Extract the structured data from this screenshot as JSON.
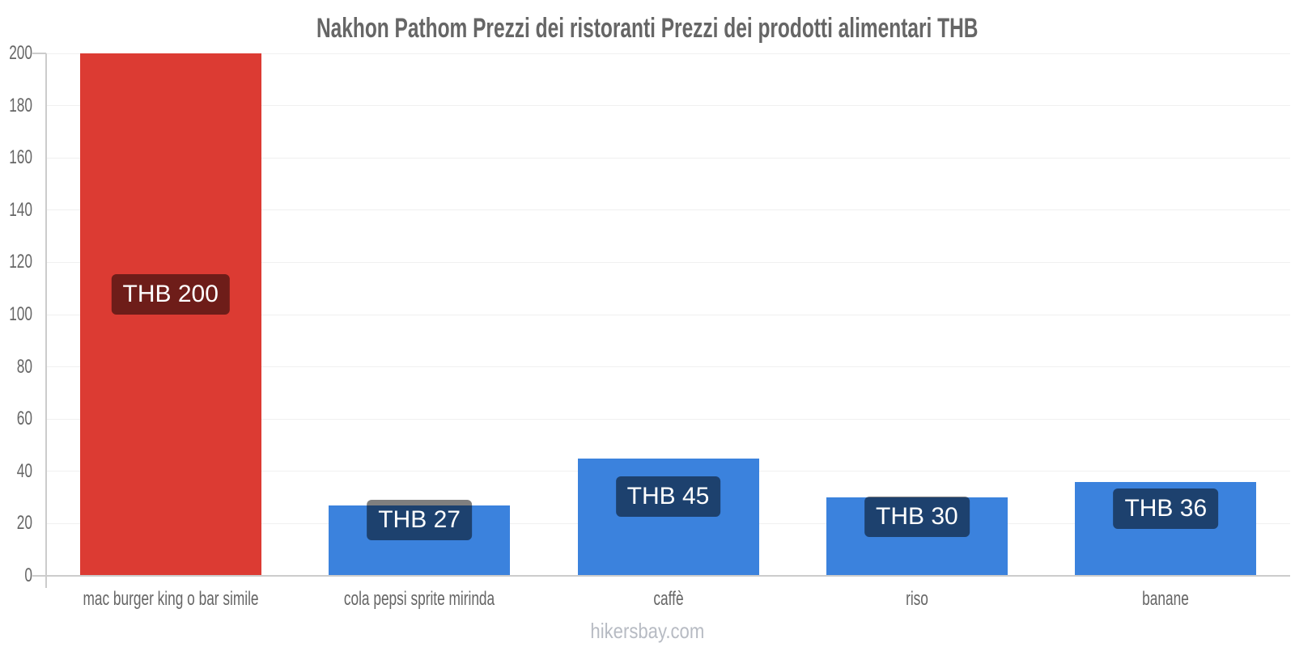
{
  "page": {
    "footer": "hikersbay.com"
  },
  "chart_data": {
    "type": "bar",
    "title": "Nakhon Pathom Prezzi dei ristoranti Prezzi dei prodotti alimentari THB",
    "categories": [
      "mac burger king o bar simile",
      "cola pepsi sprite mirinda",
      "caffè",
      "riso",
      "banane"
    ],
    "values": [
      200,
      27,
      45,
      30,
      36
    ],
    "value_label_prefix": "THB",
    "value_labels": [
      "THB 200",
      "THB 27",
      "THB 45",
      "THB 30",
      "THB 36"
    ],
    "currency": "THB",
    "ylim": [
      0,
      200
    ],
    "ytick_step": 20,
    "yticks": [
      0,
      20,
      40,
      60,
      80,
      100,
      120,
      140,
      160,
      180,
      200
    ],
    "grid": true,
    "legend": "none",
    "bar_colors": [
      "#dc3b33",
      "#3b82dd",
      "#3b82dd",
      "#3b82dd",
      "#3b82dd"
    ],
    "colors": {
      "red_bar": "#dc3b33",
      "blue_bar": "#3b82dd",
      "value_label_bg": "rgba(0,0,0,0.5)",
      "value_label_text": "#ffffff",
      "axis_text": "#666666",
      "title_text": "#666666",
      "grid_line": "#f0f0f0",
      "axis_line": "#cccccc",
      "footer_text": "#b7bbc3"
    }
  }
}
